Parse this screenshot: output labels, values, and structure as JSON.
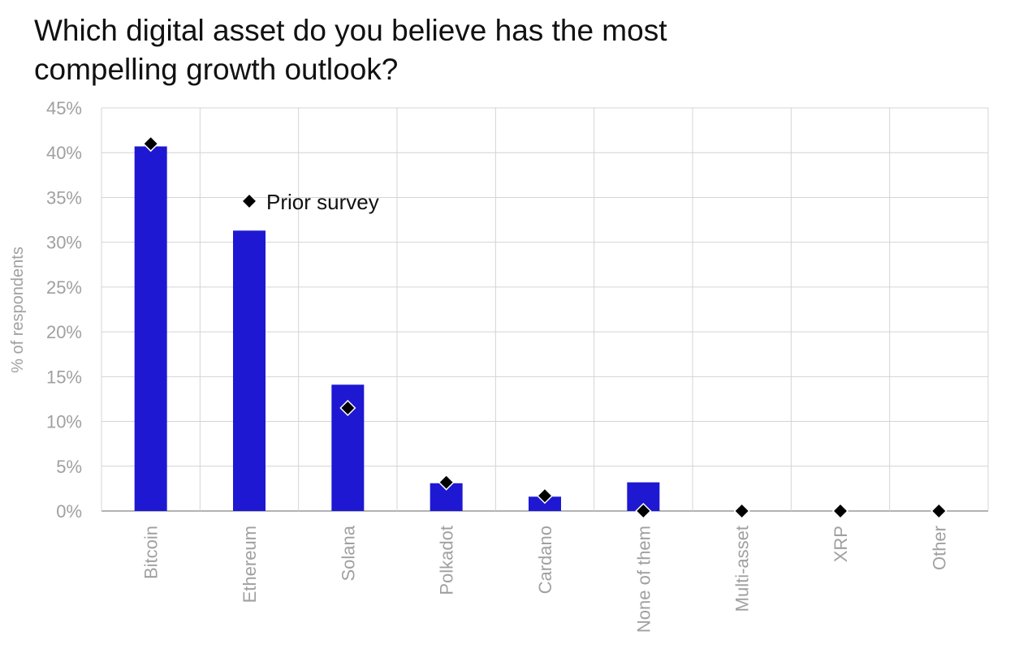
{
  "chart_data": {
    "type": "bar",
    "title": "Which digital asset do you believe has the most compelling growth outlook?",
    "ylabel": "% of respondents",
    "xlabel": "",
    "ylim": [
      0,
      45
    ],
    "y_ticks": [
      "0%",
      "5%",
      "10%",
      "15%",
      "20%",
      "25%",
      "30%",
      "35%",
      "40%",
      "45%"
    ],
    "categories": [
      "Bitcoin",
      "Ethereum",
      "Solana",
      "Polkadot",
      "Cardano",
      "None of them",
      "Multi-asset",
      "XRP",
      "Other"
    ],
    "series": [
      {
        "values": [
          40.7,
          31.3,
          14.1,
          3.1,
          1.6,
          3.2,
          0,
          0,
          0
        ],
        "color": "#1e18d2",
        "mark": "bar"
      },
      {
        "name": "Prior survey",
        "values": [
          41.0,
          null,
          11.5,
          3.2,
          1.7,
          0,
          0,
          0,
          0
        ],
        "color": "#000000",
        "mark": "diamond"
      }
    ],
    "legend": {
      "position": "top-left inside plot",
      "label": "Prior survey"
    },
    "grid": true
  }
}
